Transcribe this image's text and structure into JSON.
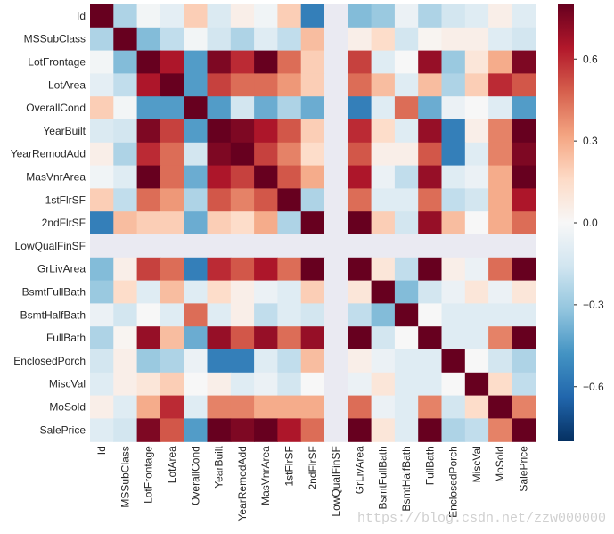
{
  "chart_data": {
    "type": "heatmap",
    "title": "",
    "xlabel": "",
    "ylabel": "",
    "labels": [
      "Id",
      "MSSubClass",
      "LotFrontage",
      "LotArea",
      "OverallCond",
      "YearBuilt",
      "YearRemodAdd",
      "MasVnrArea",
      "1stFlrSF",
      "2ndFlrSF",
      "LowQualFinSF",
      "GrLivArea",
      "BsmtFullBath",
      "BsmtHalfBath",
      "FullBath",
      "EnclosedPorch",
      "MiscVal",
      "MoSold",
      "SalePrice"
    ],
    "matrix": [
      [
        0.8,
        -0.25,
        -0.02,
        -0.08,
        0.2,
        -0.12,
        0.05,
        -0.03,
        0.2,
        -0.55,
        null,
        -0.35,
        -0.3,
        -0.05,
        -0.25,
        -0.15,
        -0.1,
        0.05,
        -0.1
      ],
      [
        -0.25,
        0.8,
        -0.35,
        -0.2,
        -0.02,
        -0.15,
        -0.25,
        -0.1,
        -0.2,
        0.25,
        null,
        0.05,
        0.15,
        -0.15,
        0.02,
        0.05,
        0.05,
        -0.1,
        -0.15
      ],
      [
        -0.02,
        -0.35,
        0.8,
        0.65,
        -0.45,
        0.75,
        0.6,
        0.8,
        0.45,
        0.2,
        null,
        0.55,
        -0.1,
        0.0,
        0.7,
        -0.3,
        0.1,
        0.3,
        0.75
      ],
      [
        -0.08,
        -0.2,
        0.65,
        0.8,
        -0.45,
        0.55,
        0.45,
        0.45,
        0.35,
        0.2,
        null,
        0.45,
        0.25,
        -0.1,
        0.25,
        -0.25,
        0.2,
        0.6,
        0.5
      ],
      [
        0.2,
        -0.02,
        -0.45,
        -0.45,
        0.8,
        -0.45,
        -0.15,
        -0.4,
        -0.25,
        -0.4,
        null,
        -0.55,
        -0.1,
        0.45,
        -0.4,
        -0.05,
        0.0,
        -0.1,
        -0.45
      ],
      [
        -0.12,
        -0.15,
        0.75,
        0.55,
        -0.45,
        0.8,
        0.75,
        0.65,
        0.5,
        0.2,
        null,
        0.6,
        0.15,
        -0.1,
        0.7,
        -0.55,
        0.05,
        0.4,
        0.8
      ],
      [
        0.05,
        -0.25,
        0.6,
        0.45,
        -0.15,
        0.75,
        0.8,
        0.55,
        0.4,
        0.15,
        null,
        0.5,
        0.05,
        0.05,
        0.5,
        -0.55,
        -0.1,
        0.4,
        0.75
      ],
      [
        -0.03,
        -0.1,
        0.8,
        0.45,
        -0.4,
        0.65,
        0.55,
        0.8,
        0.5,
        0.3,
        null,
        0.65,
        -0.05,
        -0.2,
        0.7,
        -0.1,
        -0.05,
        0.3,
        0.8
      ],
      [
        0.2,
        -0.2,
        0.45,
        0.35,
        -0.25,
        0.5,
        0.4,
        0.5,
        0.8,
        -0.25,
        null,
        0.45,
        -0.1,
        -0.1,
        0.45,
        -0.2,
        -0.15,
        0.3,
        0.65
      ],
      [
        -0.55,
        0.25,
        0.2,
        0.2,
        -0.4,
        0.2,
        0.15,
        0.3,
        -0.25,
        0.8,
        null,
        0.8,
        0.2,
        -0.15,
        0.7,
        0.25,
        0.0,
        0.3,
        0.45
      ],
      [
        null,
        null,
        null,
        null,
        null,
        null,
        null,
        null,
        null,
        null,
        null,
        null,
        null,
        null,
        null,
        null,
        null,
        null,
        null
      ],
      [
        -0.35,
        0.05,
        0.55,
        0.45,
        -0.55,
        0.6,
        0.5,
        0.65,
        0.45,
        0.8,
        null,
        0.8,
        0.1,
        -0.2,
        0.8,
        0.05,
        -0.05,
        0.45,
        0.8
      ],
      [
        -0.3,
        0.15,
        -0.1,
        0.25,
        -0.1,
        0.15,
        0.05,
        -0.05,
        -0.1,
        0.2,
        null,
        0.1,
        0.8,
        -0.35,
        -0.15,
        -0.05,
        0.1,
        -0.05,
        0.1
      ],
      [
        -0.05,
        -0.15,
        0.0,
        -0.1,
        0.45,
        -0.1,
        0.05,
        -0.2,
        -0.1,
        -0.15,
        null,
        -0.2,
        -0.35,
        0.8,
        0.0,
        -0.1,
        -0.1,
        -0.1,
        -0.1
      ],
      [
        -0.25,
        0.02,
        0.7,
        0.25,
        -0.4,
        0.7,
        0.5,
        0.7,
        0.45,
        0.7,
        null,
        0.8,
        -0.15,
        0.0,
        0.8,
        -0.1,
        -0.1,
        0.4,
        0.8
      ],
      [
        -0.15,
        0.05,
        -0.3,
        -0.25,
        -0.05,
        -0.55,
        -0.55,
        -0.1,
        -0.2,
        0.25,
        null,
        0.05,
        -0.05,
        -0.1,
        -0.1,
        0.8,
        0.0,
        -0.15,
        -0.25
      ],
      [
        -0.1,
        0.05,
        0.1,
        0.2,
        0.0,
        0.05,
        -0.1,
        -0.05,
        -0.15,
        0.0,
        null,
        -0.05,
        0.1,
        -0.1,
        -0.1,
        0.0,
        0.8,
        0.15,
        -0.2
      ],
      [
        0.05,
        -0.1,
        0.3,
        0.6,
        -0.1,
        0.4,
        0.4,
        0.3,
        0.3,
        0.3,
        null,
        0.45,
        -0.05,
        -0.1,
        0.4,
        -0.15,
        0.15,
        0.8,
        0.4
      ],
      [
        -0.1,
        -0.15,
        0.75,
        0.5,
        -0.45,
        0.8,
        0.75,
        0.8,
        0.65,
        0.45,
        null,
        0.8,
        0.1,
        -0.1,
        0.8,
        -0.25,
        -0.2,
        0.4,
        0.8
      ]
    ],
    "vmin": -0.8,
    "vmax": 0.8,
    "colormap": "RdBu_r",
    "colorbar_ticks": [
      0.6,
      0.3,
      0.0,
      -0.3,
      -0.6
    ],
    "colorbar_tick_labels": [
      "0.6",
      "0.3",
      "0.0",
      "−0.3",
      "−0.6"
    ],
    "missing_color": "#eaeaf2",
    "grid": false,
    "legend": "colorbar-right"
  },
  "watermark": "https://blog.csdn.net/zzw000000"
}
